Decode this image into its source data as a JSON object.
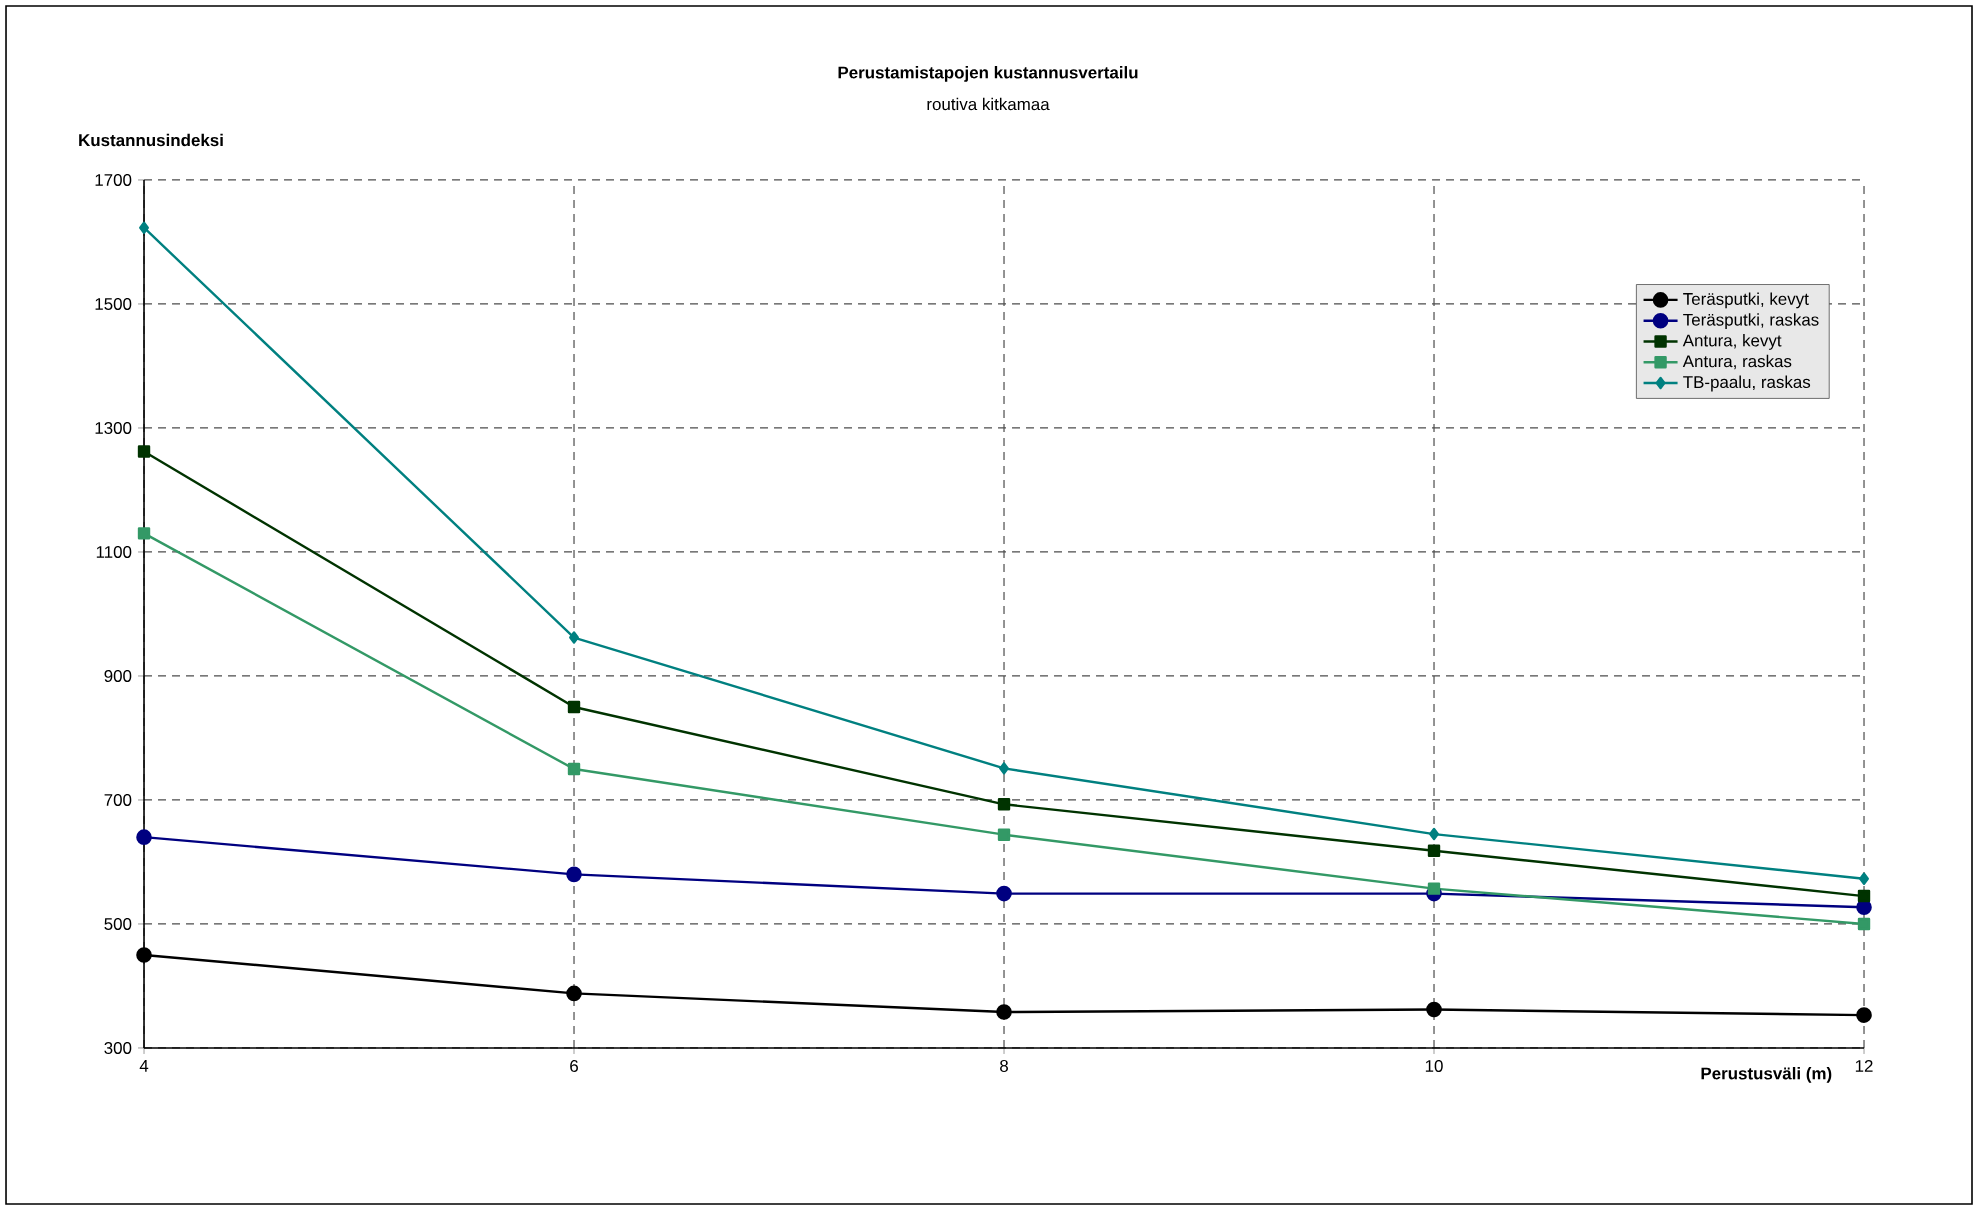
{
  "chart_data": {
    "type": "line",
    "title": "Perustamistapojen kustannusvertailu",
    "subtitle": "routiva kitkamaa",
    "xlabel": "Perustusväli (m)",
    "ylabel": "Kustannusindeksi",
    "x": [
      4,
      6,
      8,
      10,
      12
    ],
    "xlim": [
      4,
      12
    ],
    "xticks": [
      4,
      6,
      8,
      10,
      12
    ],
    "ylim": [
      300,
      1700
    ],
    "yticks": [
      300,
      500,
      700,
      900,
      1100,
      1300,
      1500,
      1700
    ],
    "grid": true,
    "legend": "top right",
    "line_style": "solid",
    "series": [
      {
        "name": "Teräsputki, kevyt",
        "color": "#000000",
        "marker": "circle",
        "values": [
          450,
          388,
          358,
          362,
          353
        ]
      },
      {
        "name": "Teräsputki, raskas",
        "color": "#000080",
        "marker": "circle",
        "values": [
          640,
          580,
          549,
          549,
          527
        ]
      },
      {
        "name": "Antura, kevyt",
        "color": "#003300",
        "marker": "square",
        "values": [
          1262,
          850,
          693,
          618,
          545
        ]
      },
      {
        "name": "Antura, raskas",
        "color": "#339966",
        "marker": "square",
        "values": [
          1130,
          750,
          644,
          557,
          500
        ]
      },
      {
        "name": "TB-paalu, raskas",
        "color": "#008080",
        "marker": "diamond",
        "values": [
          1623,
          962,
          751,
          645,
          573
        ]
      }
    ]
  }
}
